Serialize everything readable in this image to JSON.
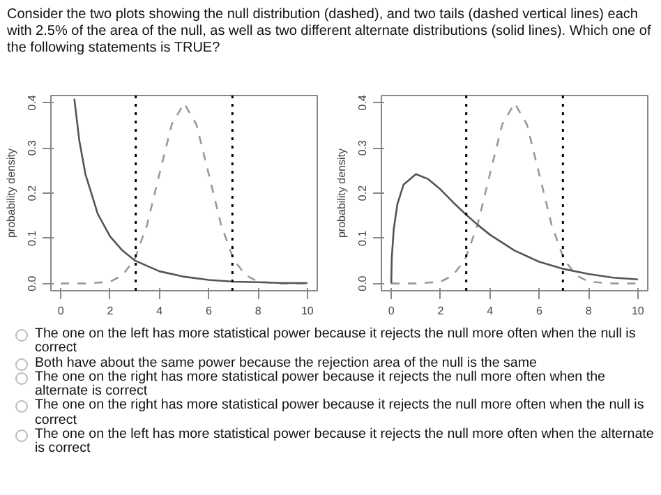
{
  "chart_data": [
    {
      "type": "line",
      "title": "Consider the two plots showing the null distribution (dashed), and two tails (dashed vertical lines) each with 2.5% of the area of the null, as well as two different alternate distributions (solid lines). Which one of the following statements is TRUE?",
      "ylabel": "probability density",
      "xlim": [
        -0.4,
        10.4
      ],
      "ylim": [
        -0.016,
        0.416
      ],
      "xticks": [
        0,
        2,
        4,
        6,
        8,
        10
      ],
      "yticks": [
        {
          "value": 0,
          "label": "0.0"
        },
        0.1,
        0.2,
        0.3,
        0.4
      ],
      "series": [
        {
          "color": "#999999",
          "line_style": "dashed",
          "x": [
            0,
            1,
            2,
            2.5,
            3,
            3.5,
            4,
            4.5,
            5,
            5.5,
            6,
            6.5,
            7,
            7.5,
            8,
            9,
            10
          ],
          "values": [
            0,
            0,
            0.004,
            0.018,
            0.054,
            0.13,
            0.242,
            0.352,
            0.399,
            0.352,
            0.242,
            0.13,
            0.054,
            0.018,
            0.004,
            0,
            0
          ]
        },
        {
          "color": "#555555",
          "line_style": "solid",
          "x": [
            0.55,
            0.75,
            1,
            1.5,
            2,
            2.5,
            3,
            4,
            5,
            6,
            7,
            8,
            9,
            10
          ],
          "values": [
            0.409,
            0.317,
            0.242,
            0.154,
            0.104,
            0.073,
            0.051,
            0.027,
            0.015,
            0.008,
            0.004,
            0.003,
            0.001,
            0.001
          ]
        }
      ],
      "ref_lines": [
        {
          "axis": "x",
          "value": 3.04,
          "color": "#000000",
          "line_style": "dotted"
        },
        {
          "axis": "x",
          "value": 6.96,
          "color": "#000000",
          "line_style": "dotted"
        }
      ]
    },
    {
      "type": "line",
      "ylabel": "probability density",
      "xlim": [
        -0.4,
        10.4
      ],
      "ylim": [
        -0.016,
        0.416
      ],
      "xticks": [
        0,
        2,
        4,
        6,
        8,
        10
      ],
      "yticks": [
        {
          "value": 0,
          "label": "0.0"
        },
        0.1,
        0.2,
        0.3,
        0.4
      ],
      "series": [
        {
          "color": "#999999",
          "line_style": "dashed",
          "x": [
            0,
            1,
            2,
            2.5,
            3,
            3.5,
            4,
            4.5,
            5,
            5.5,
            6,
            6.5,
            7,
            7.5,
            8,
            9,
            10
          ],
          "values": [
            0,
            0,
            0.004,
            0.018,
            0.054,
            0.13,
            0.242,
            0.352,
            0.399,
            0.352,
            0.242,
            0.13,
            0.054,
            0.018,
            0.004,
            0,
            0
          ]
        },
        {
          "color": "#555555",
          "line_style": "solid",
          "x": [
            0,
            0.02,
            0.1,
            0.25,
            0.5,
            1,
            1.5,
            2,
            2.5,
            3,
            3.5,
            4,
            5,
            6,
            7,
            8,
            9,
            10
          ],
          "values": [
            0,
            0.056,
            0.12,
            0.176,
            0.219,
            0.242,
            0.231,
            0.208,
            0.18,
            0.154,
            0.13,
            0.108,
            0.073,
            0.048,
            0.032,
            0.021,
            0.013,
            0.009
          ]
        }
      ],
      "ref_lines": [
        {
          "axis": "x",
          "value": 3.04,
          "color": "#000000",
          "line_style": "dotted"
        },
        {
          "axis": "x",
          "value": 6.96,
          "color": "#000000",
          "line_style": "dotted"
        }
      ],
      "annotations": [
        "The one on the left has more statistical power because it rejects the null more often when the null is correct",
        "Both have about the same power because the rejection area of the null is the same",
        "The one on the right has more statistical power because it rejects the null more often when the alternate is correct",
        "The one on the right has more statistical power because it rejects the null more often when the null is correct",
        "The one on the left has more statistical power because it rejects the null more often when the alternate is correct"
      ]
    }
  ]
}
